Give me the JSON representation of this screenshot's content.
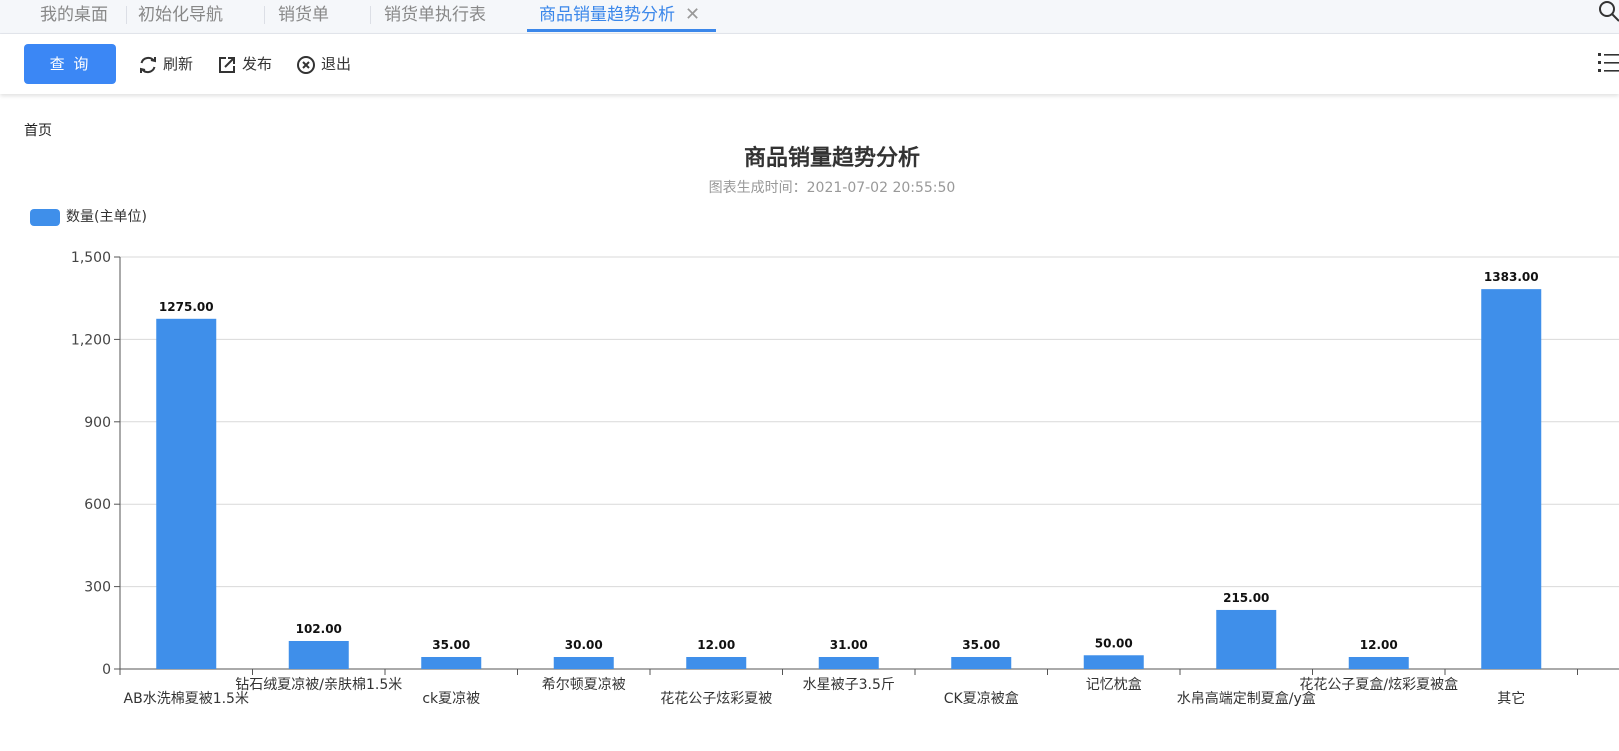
{
  "tabs": [
    {
      "label": "我的桌面",
      "active": false
    },
    {
      "label": "初始化导航",
      "active": false
    },
    {
      "label": "销货单",
      "active": false
    },
    {
      "label": "销货单执行表",
      "active": false
    },
    {
      "label": "商品销量趋势分析",
      "active": true
    }
  ],
  "toolbar": {
    "query_label": "查 询",
    "refresh_label": "刷新",
    "publish_label": "发布",
    "exit_label": "退出"
  },
  "breadcrumb": "首页",
  "colors": {
    "accent": "#3b87f5",
    "bar": "#3f8fea"
  },
  "chart_data": {
    "type": "bar",
    "title": "商品销量趋势分析",
    "subtitle": "图表生成时间：2021-07-02 20:55:50",
    "legend": {
      "name": "数量(主单位)",
      "placement": "top-left"
    },
    "categories": [
      "AB水洗棉夏被1.5米",
      "钻石绒夏凉被/亲肤棉1.5米",
      "ck夏凉被",
      "希尔顿夏凉被",
      "花花公子炫彩夏被",
      "水星被子3.5斤",
      "CK夏凉被盒",
      "记忆枕盒",
      "水帛高端定制夏盒/y盒",
      "花花公子夏盒/炫彩夏被盒",
      "其它"
    ],
    "series": [
      {
        "name": "数量(主单位)",
        "values": [
          1275.0,
          102.0,
          35.0,
          30.0,
          12.0,
          31.0,
          35.0,
          50.0,
          215.0,
          12.0,
          1383.0
        ]
      }
    ],
    "value_labels": [
      "1275.00",
      "102.00",
      "35.00",
      "30.00",
      "12.00",
      "31.00",
      "35.00",
      "50.00",
      "215.00",
      "12.00",
      "1383.00"
    ],
    "ylim": [
      0,
      1500
    ],
    "yticks": [
      0,
      300,
      600,
      900,
      1200,
      1500
    ],
    "ytick_labels": [
      "0",
      "300",
      "600",
      "900",
      "1,200",
      "1,500"
    ],
    "grid": true
  }
}
